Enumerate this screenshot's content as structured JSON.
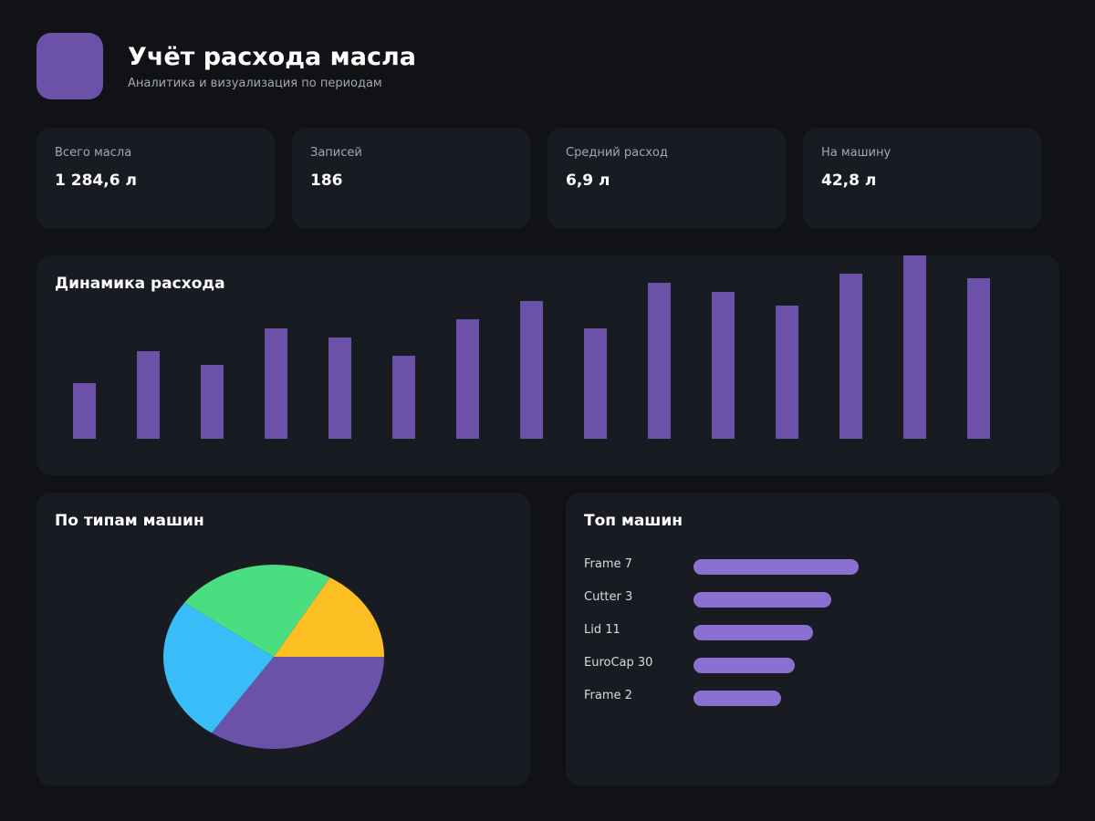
{
  "header": {
    "title": "Учёт расхода масла",
    "subtitle": "Аналитика и визуализация по периодам",
    "logo_color": "#6b51a8"
  },
  "kpis": [
    {
      "label": "Всего масла",
      "value": "1 284,6 л"
    },
    {
      "label": "Записей",
      "value": "186"
    },
    {
      "label": "Средний расход",
      "value": "6,9 л"
    },
    {
      "label": "На машину",
      "value": "42,8 л"
    }
  ],
  "trend": {
    "title": "Динамика расхода",
    "chart_data": {
      "type": "bar",
      "values": [
        61,
        96,
        81,
        121,
        111,
        91,
        131,
        151,
        121,
        171,
        161,
        146,
        181,
        201,
        176
      ],
      "ylim": [
        0,
        201
      ],
      "color": "#6b51a8",
      "grid": false,
      "legend": "none"
    }
  },
  "types": {
    "title": "По типам машин",
    "chart_data": {
      "type": "pie",
      "values": [
        16.5,
        23.5,
        25.5,
        34.5
      ],
      "colors": [
        "#fbbf24",
        "#4ade80",
        "#38bdf8",
        "#6b51a8"
      ],
      "legend": "none"
    }
  },
  "top_machines": {
    "title": "Топ машин",
    "chart_data": {
      "type": "bar",
      "orientation": "horizontal",
      "categories": [
        "Frame 7",
        "Cutter 3",
        "Lid 11",
        "EuroCap 30",
        "Frame 2"
      ],
      "values": [
        181,
        151,
        131,
        111,
        96
      ],
      "xlim": [
        0,
        181
      ],
      "color": "#8b6fd1"
    }
  }
}
